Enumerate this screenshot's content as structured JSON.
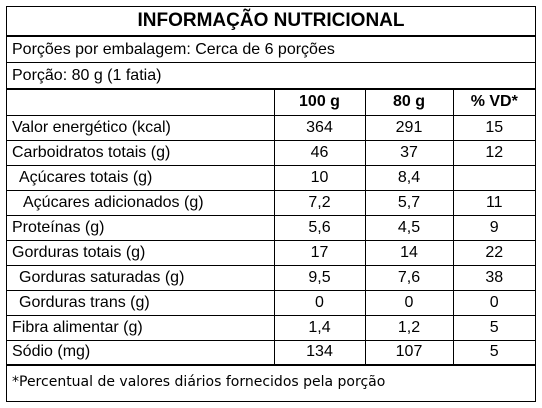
{
  "title": "INFORMAÇÃO NUTRICIONAL",
  "servings_per_package": "Porções por embalagem: Cerca de 6 porções",
  "serving_size": "Porção: 80 g (1 fatia)",
  "columns": [
    "",
    "100 g",
    "80 g",
    "% VD*"
  ],
  "rows": [
    {
      "name": "Valor energético (kcal)",
      "per100": "364",
      "per_serving": "291",
      "dv": "15"
    },
    {
      "name": "Carboidratos totais (g)",
      "per100": "46",
      "per_serving": "37",
      "dv": "12"
    },
    {
      "name": "Açúcares totais (g)",
      "per100": "10",
      "per_serving": "8,4",
      "dv": ""
    },
    {
      "name": "Açúcares adicionados (g)",
      "per100": "7,2",
      "per_serving": "5,7",
      "dv": "11"
    },
    {
      "name": "Proteínas (g)",
      "per100": "5,6",
      "per_serving": "4,5",
      "dv": "9"
    },
    {
      "name": "Gorduras totais (g)",
      "per100": "17",
      "per_serving": "14",
      "dv": "22"
    },
    {
      "name": "Gorduras saturadas (g)",
      "per100": "9,5",
      "per_serving": "7,6",
      "dv": "38"
    },
    {
      "name": "Gorduras trans (g)",
      "per100": "0",
      "per_serving": "0",
      "dv": "0"
    },
    {
      "name": "Fibra alimentar (g)",
      "per100": "1,4",
      "per_serving": "1,2",
      "dv": "5"
    },
    {
      "name": "Sódio (mg)",
      "per100": "134",
      "per_serving": "107",
      "dv": "5"
    }
  ],
  "footnote": "*Percentual de valores diários fornecidos pela porção"
}
